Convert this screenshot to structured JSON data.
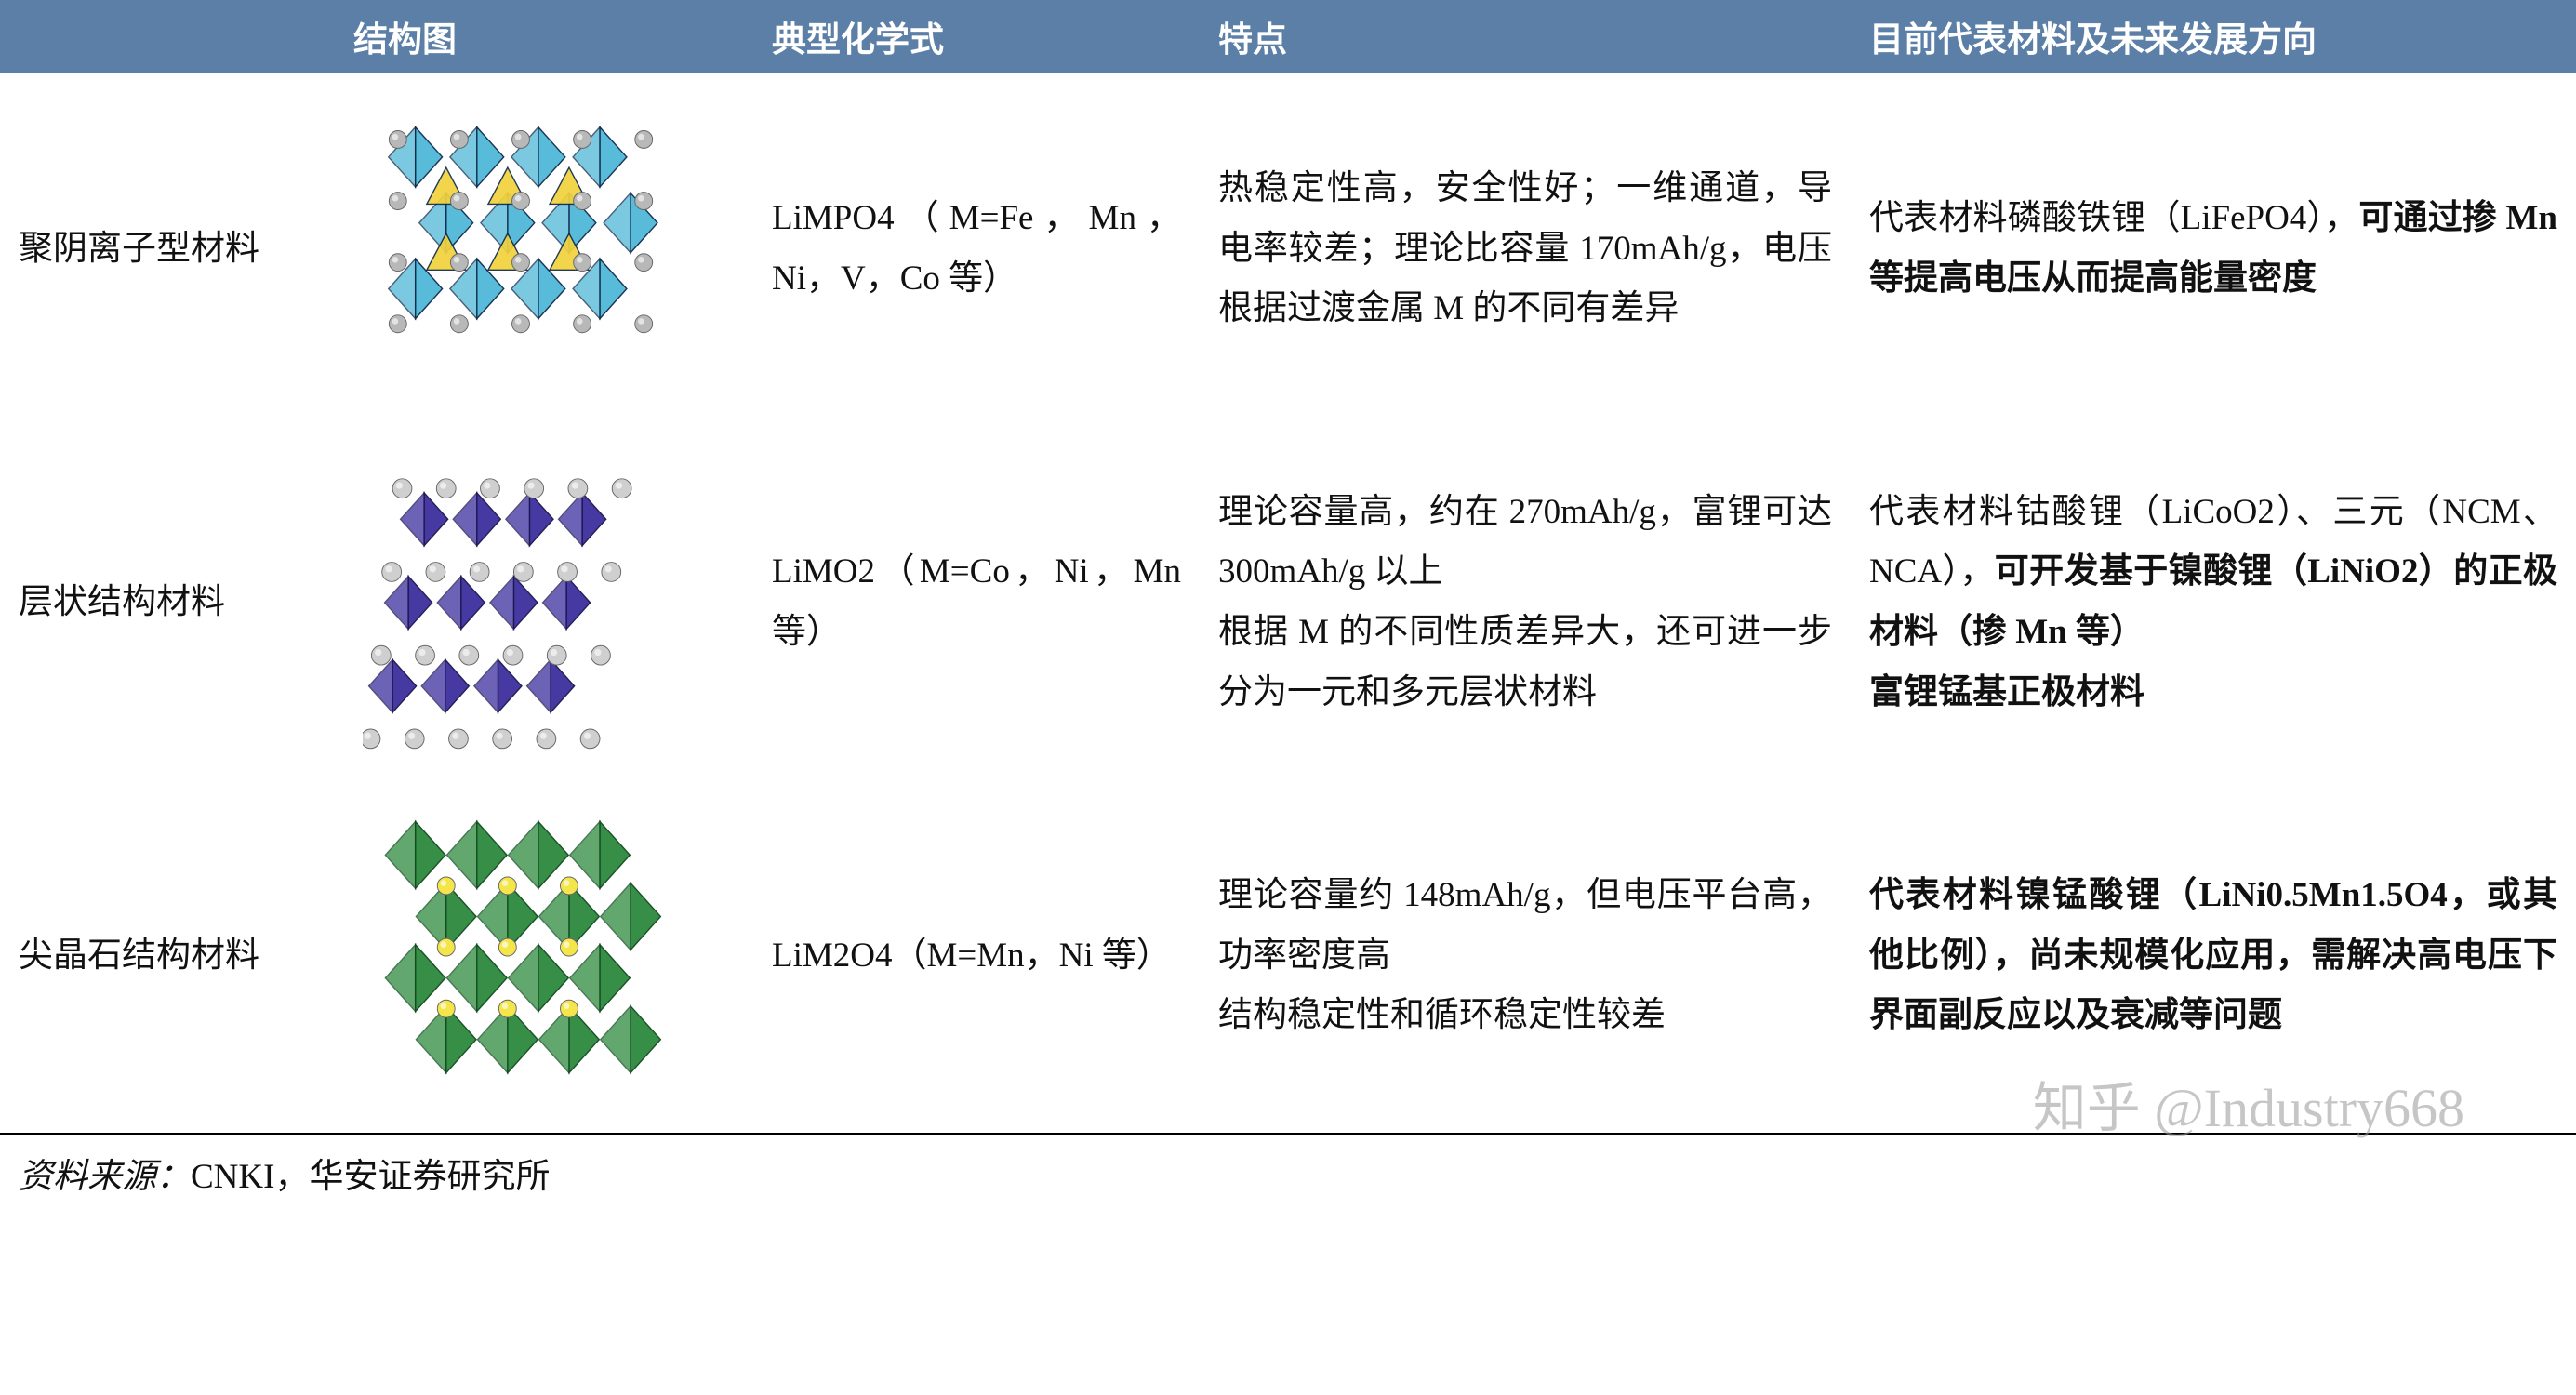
{
  "header": {
    "background_color": "#5b7fa6",
    "text_color": "#ffffff",
    "columns": [
      "",
      "结构图",
      "典型化学式",
      "特点",
      "目前代表材料及未来发展方向"
    ]
  },
  "rows": [
    {
      "name": "聚阴离子型材料",
      "structure": {
        "type": "crystal-polyanion",
        "octahedron_color": "#4fb8d8",
        "tetrahedron_color": "#f2d23c",
        "sphere_color": "#b8b8b8",
        "edge_color": "#0d2a4a"
      },
      "chem": "LiMPO4（M=Fe，Mn，Ni，V，Co 等）",
      "features_plain": "热稳定性高，安全性好；一维通道，导电率较差；理论比容量 170mAh/g，电压根据过渡金属 M 的不同有差异",
      "rep_plain": "代表材料磷酸铁锂（LiFePO4），",
      "rep_bold": "可通过掺 Mn 等提高电压从而提高能量密度"
    },
    {
      "name": "层状结构材料",
      "structure": {
        "type": "crystal-layered",
        "octahedron_color": "#3d2f9e",
        "sphere_color": "#cfcfcf",
        "edge_color": "#1a1450"
      },
      "chem": "LiMO2（M=Co，Ni，Mn 等）",
      "features_plain": "理论容量高，约在 270mAh/g，富锂可达 300mAh/g 以上\n根据 M 的不同性质差异大，还可进一步分为一元和多元层状材料",
      "rep_plain": "代表材料钴酸锂（LiCoO2）、三元（NCM、NCA），",
      "rep_bold": "可开发基于镍酸锂（LiNiO2）的正极材料（掺 Mn 等）\n富锂锰基正极材料"
    },
    {
      "name": "尖晶石结构材料",
      "structure": {
        "type": "crystal-spinel",
        "octahedron_color": "#2d8a3e",
        "sphere_color": "#f4e54b",
        "edge_color": "#0e4a1d"
      },
      "chem": "LiM2O4（M=Mn，Ni 等）",
      "features_plain": "理论容量约 148mAh/g，但电压平台高，功率密度高\n结构稳定性和循环稳定性较差",
      "rep_plain": "",
      "rep_bold": "代表材料镍锰酸锂（LiNi0.5Mn1.5O4，或其他比例），尚未规模化应用，需解决高电压下界面副反应以及衰减等问题"
    }
  ],
  "footer": {
    "label": "资料来源：",
    "text": "CNKI，华安证券研究所"
  },
  "watermark": "知乎 @Industry668"
}
